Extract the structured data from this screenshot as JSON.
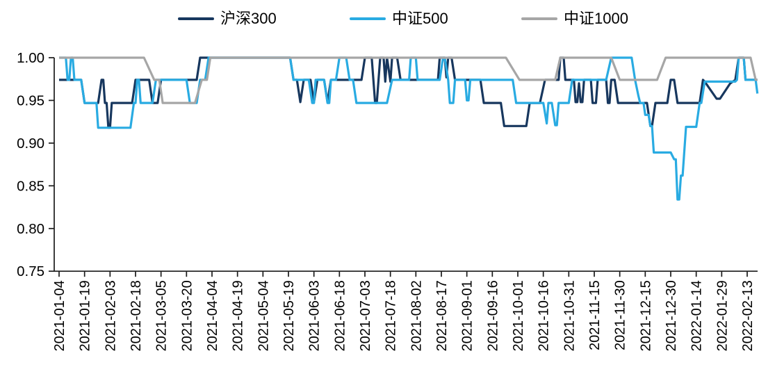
{
  "legend": {
    "items": [
      {
        "id": "hs300",
        "label": "沪深300",
        "color": "#17375e"
      },
      {
        "id": "csi500",
        "label": "中证500",
        "color": "#29abe2"
      },
      {
        "id": "csi1000",
        "label": "中证1000",
        "color": "#a6a6a6"
      }
    ]
  },
  "chart_data": {
    "type": "line",
    "title": "",
    "xlabel": "",
    "ylabel": "",
    "grid": "off",
    "legend_position": "top-center",
    "axis_color": "#1a1a1a",
    "y_tick_labels": [
      "1.00",
      "0.95",
      "0.90",
      "0.85",
      "0.80",
      "0.75"
    ],
    "y_range": [
      0.75,
      1.0
    ],
    "x_tick_interval_days": 15,
    "x_range_days": [
      0,
      411
    ],
    "x_tick_labels": [
      "2021-01-04",
      "2021-01-19",
      "2021-02-03",
      "2021-02-18",
      "2021-03-05",
      "2021-03-20",
      "2021-04-04",
      "2021-04-19",
      "2021-05-04",
      "2021-05-19",
      "2021-06-03",
      "2021-06-18",
      "2021-07-03",
      "2021-07-18",
      "2021-08-02",
      "2021-08-17",
      "2021-09-01",
      "2021-09-16",
      "2021-10-01",
      "2021-10-16",
      "2021-10-31",
      "2021-11-15",
      "2021-11-30",
      "2021-12-15",
      "2021-12-30",
      "2022-01-14",
      "2022-01-29",
      "2022-02-13"
    ],
    "series": [
      {
        "id": "hs300",
        "name": "沪深300",
        "color": "#17375e",
        "points": [
          [
            0,
            0.974
          ],
          [
            13,
            0.974
          ],
          [
            15,
            0.947
          ],
          [
            23,
            0.947
          ],
          [
            25,
            0.974
          ],
          [
            26,
            0.974
          ],
          [
            27,
            0.947
          ],
          [
            28,
            0.947
          ],
          [
            29,
            0.918
          ],
          [
            30,
            0.918
          ],
          [
            31,
            0.947
          ],
          [
            43,
            0.947
          ],
          [
            45,
            0.974
          ],
          [
            53,
            0.974
          ],
          [
            55,
            0.947
          ],
          [
            58,
            0.947
          ],
          [
            60,
            0.974
          ],
          [
            81,
            0.974
          ],
          [
            83,
            1
          ],
          [
            136,
            1
          ],
          [
            138,
            0.974
          ],
          [
            140,
            0.974
          ],
          [
            142,
            0.948
          ],
          [
            144,
            0.974
          ],
          [
            148,
            0.974
          ],
          [
            150,
            0.948
          ],
          [
            152,
            0.974
          ],
          [
            156,
            0.974
          ],
          [
            158,
            0.948
          ],
          [
            160,
            0.974
          ],
          [
            178,
            0.974
          ],
          [
            180,
            1
          ],
          [
            184,
            1
          ],
          [
            186,
            0.947
          ],
          [
            187,
            0.947
          ],
          [
            189,
            1
          ],
          [
            191,
            1
          ],
          [
            192,
            0.972
          ],
          [
            193,
            1
          ],
          [
            195,
            0.972
          ],
          [
            196,
            1
          ],
          [
            199,
            1
          ],
          [
            201,
            0.974
          ],
          [
            223,
            0.974
          ],
          [
            224,
            1
          ],
          [
            227,
            1
          ],
          [
            228,
            0.977
          ],
          [
            229,
            1
          ],
          [
            231,
            1
          ],
          [
            233,
            0.974
          ],
          [
            248,
            0.974
          ],
          [
            250,
            0.947
          ],
          [
            260,
            0.947
          ],
          [
            262,
            0.92
          ],
          [
            275,
            0.92
          ],
          [
            277,
            0.947
          ],
          [
            283,
            0.947
          ],
          [
            286,
            0.974
          ],
          [
            294,
            0.974
          ],
          [
            295,
            1
          ],
          [
            297,
            1
          ],
          [
            298,
            0.974
          ],
          [
            303,
            0.974
          ],
          [
            304,
            0.948
          ],
          [
            305,
            0.948
          ],
          [
            306,
            0.97
          ],
          [
            307,
            0.948
          ],
          [
            308,
            0.948
          ],
          [
            309,
            0.974
          ],
          [
            313,
            0.974
          ],
          [
            314,
            0.947
          ],
          [
            316,
            0.947
          ],
          [
            317,
            0.974
          ],
          [
            322,
            0.974
          ],
          [
            323,
            0.947
          ],
          [
            324,
            0.947
          ],
          [
            325,
            0.974
          ],
          [
            327,
            0.974
          ],
          [
            329,
            0.947
          ],
          [
            346,
            0.947
          ],
          [
            348,
            0.92
          ],
          [
            349,
            0.92
          ],
          [
            351,
            0.947
          ],
          [
            358,
            0.947
          ],
          [
            360,
            0.974
          ],
          [
            362,
            0.974
          ],
          [
            364,
            0.947
          ],
          [
            377,
            0.947
          ],
          [
            379,
            0.974
          ],
          [
            380,
            0.972
          ],
          [
            387,
            0.952
          ],
          [
            389,
            0.952
          ],
          [
            395,
            0.97
          ],
          [
            398,
            0.974
          ],
          [
            400,
            1
          ],
          [
            403,
            1
          ],
          [
            404,
            0.974
          ],
          [
            411,
            0.974
          ]
        ]
      },
      {
        "id": "csi500",
        "name": "中证500",
        "color": "#29abe2",
        "points": [
          [
            0,
            1
          ],
          [
            4,
            1
          ],
          [
            5,
            0.974
          ],
          [
            6,
            0.974
          ],
          [
            7,
            1
          ],
          [
            8,
            1
          ],
          [
            9,
            0.974
          ],
          [
            13,
            0.974
          ],
          [
            15,
            0.947
          ],
          [
            22,
            0.947
          ],
          [
            23,
            0.918
          ],
          [
            42,
            0.918
          ],
          [
            44,
            0.947
          ],
          [
            45,
            0.947
          ],
          [
            46,
            0.974
          ],
          [
            47,
            0.974
          ],
          [
            48,
            0.947
          ],
          [
            55,
            0.947
          ],
          [
            57,
            0.974
          ],
          [
            75,
            0.974
          ],
          [
            77,
            0.947
          ],
          [
            81,
            0.947
          ],
          [
            83,
            0.974
          ],
          [
            86,
            0.974
          ],
          [
            88,
            1
          ],
          [
            136,
            1
          ],
          [
            138,
            0.974
          ],
          [
            147,
            0.974
          ],
          [
            149,
            0.947
          ],
          [
            150,
            0.947
          ],
          [
            151,
            0.974
          ],
          [
            156,
            0.974
          ],
          [
            158,
            0.947
          ],
          [
            159,
            0.947
          ],
          [
            160,
            0.974
          ],
          [
            163,
            0.974
          ],
          [
            165,
            1
          ],
          [
            169,
            1
          ],
          [
            171,
            0.974
          ],
          [
            173,
            0.974
          ],
          [
            175,
            0.947
          ],
          [
            193,
            0.947
          ],
          [
            196,
            0.974
          ],
          [
            206,
            0.974
          ],
          [
            207,
            1
          ],
          [
            210,
            1
          ],
          [
            211,
            0.974
          ],
          [
            224,
            0.974
          ],
          [
            226,
            1
          ],
          [
            227,
            1
          ],
          [
            229,
            0.974
          ],
          [
            230,
            0.947
          ],
          [
            232,
            0.947
          ],
          [
            233,
            0.974
          ],
          [
            239,
            0.974
          ],
          [
            240,
            0.95
          ],
          [
            241,
            0.95
          ],
          [
            242,
            0.974
          ],
          [
            267,
            0.974
          ],
          [
            269,
            0.947
          ],
          [
            285,
            0.947
          ],
          [
            287,
            0.923
          ],
          [
            288,
            0.947
          ],
          [
            290,
            0.947
          ],
          [
            292,
            0.921
          ],
          [
            293,
            0.921
          ],
          [
            294,
            0.947
          ],
          [
            300,
            0.947
          ],
          [
            302,
            0.974
          ],
          [
            322,
            0.974
          ],
          [
            325,
            1
          ],
          [
            337,
            1
          ],
          [
            339,
            0.974
          ],
          [
            341,
            0.955
          ],
          [
            342,
            0.947
          ],
          [
            344,
            0.947
          ],
          [
            345,
            0.933
          ],
          [
            347,
            0.933
          ],
          [
            348,
            0.92
          ],
          [
            349,
            0.92
          ],
          [
            350,
            0.889
          ],
          [
            360,
            0.889
          ],
          [
            362,
            0.881
          ],
          [
            363,
            0.881
          ],
          [
            364,
            0.834
          ],
          [
            365,
            0.834
          ],
          [
            366,
            0.862
          ],
          [
            367,
            0.862
          ],
          [
            369,
            0.919
          ],
          [
            375,
            0.919
          ],
          [
            377,
            0.947
          ],
          [
            378,
            0.947
          ],
          [
            380,
            0.972
          ],
          [
            398,
            0.972
          ],
          [
            399,
            0.974
          ],
          [
            400,
            1
          ],
          [
            403,
            1
          ],
          [
            404,
            0.974
          ],
          [
            410,
            0.974
          ],
          [
            411,
            0.958
          ]
        ]
      },
      {
        "id": "csi1000",
        "name": "中证1000",
        "color": "#a6a6a6",
        "points": [
          [
            0,
            1
          ],
          [
            50,
            1
          ],
          [
            56,
            0.974
          ],
          [
            59,
            0.974
          ],
          [
            61,
            0.947
          ],
          [
            80,
            0.947
          ],
          [
            84,
            0.974
          ],
          [
            87,
            0.974
          ],
          [
            89,
            1
          ],
          [
            263,
            1
          ],
          [
            271,
            0.974
          ],
          [
            292,
            0.974
          ],
          [
            295,
            1
          ],
          [
            325,
            1
          ],
          [
            330,
            0.974
          ],
          [
            352,
            0.974
          ],
          [
            357,
            1
          ],
          [
            407,
            1
          ],
          [
            410,
            0.974
          ],
          [
            411,
            0.974
          ]
        ]
      }
    ]
  }
}
